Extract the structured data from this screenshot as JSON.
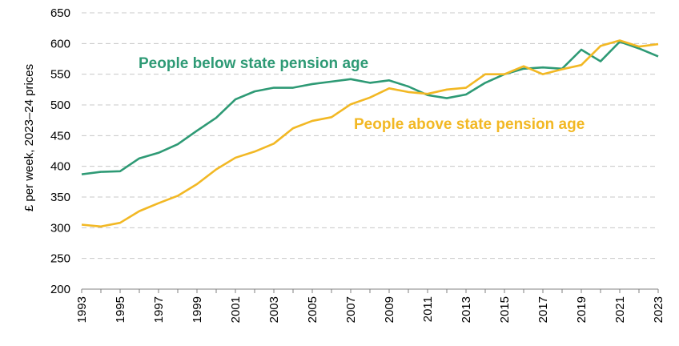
{
  "chart_data": {
    "type": "line",
    "title": "",
    "xlabel": "",
    "ylabel": "£ per week, 2023–24 prices",
    "ylim": [
      200,
      650
    ],
    "yticks": [
      200,
      250,
      300,
      350,
      400,
      450,
      500,
      550,
      600,
      650
    ],
    "xlim": [
      1993,
      2023
    ],
    "xticks": [
      1993,
      1995,
      1997,
      1999,
      2001,
      2003,
      2005,
      2007,
      2009,
      2011,
      2013,
      2015,
      2017,
      2019,
      2021,
      2023
    ],
    "grid": true,
    "x": [
      1993,
      1994,
      1995,
      1996,
      1997,
      1998,
      1999,
      2000,
      2001,
      2002,
      2003,
      2004,
      2005,
      2006,
      2007,
      2008,
      2009,
      2010,
      2011,
      2012,
      2013,
      2014,
      2015,
      2016,
      2017,
      2018,
      2019,
      2020,
      2021,
      2022,
      2023
    ],
    "series": [
      {
        "name": "People below state pension age",
        "color": "#2e9a75",
        "values": [
          387,
          391,
          392,
          413,
          422,
          436,
          458,
          479,
          509,
          522,
          528,
          528,
          534,
          538,
          542,
          536,
          540,
          530,
          516,
          511,
          517,
          536,
          550,
          559,
          561,
          559,
          590,
          571,
          603,
          592,
          579
        ]
      },
      {
        "name": "People above state pension age",
        "color": "#f2b824",
        "values": [
          305,
          302,
          308,
          327,
          340,
          352,
          371,
          395,
          414,
          424,
          437,
          462,
          474,
          480,
          501,
          512,
          527,
          521,
          518,
          525,
          528,
          550,
          550,
          563,
          550,
          558,
          565,
          596,
          605,
          595,
          599
        ]
      }
    ]
  }
}
